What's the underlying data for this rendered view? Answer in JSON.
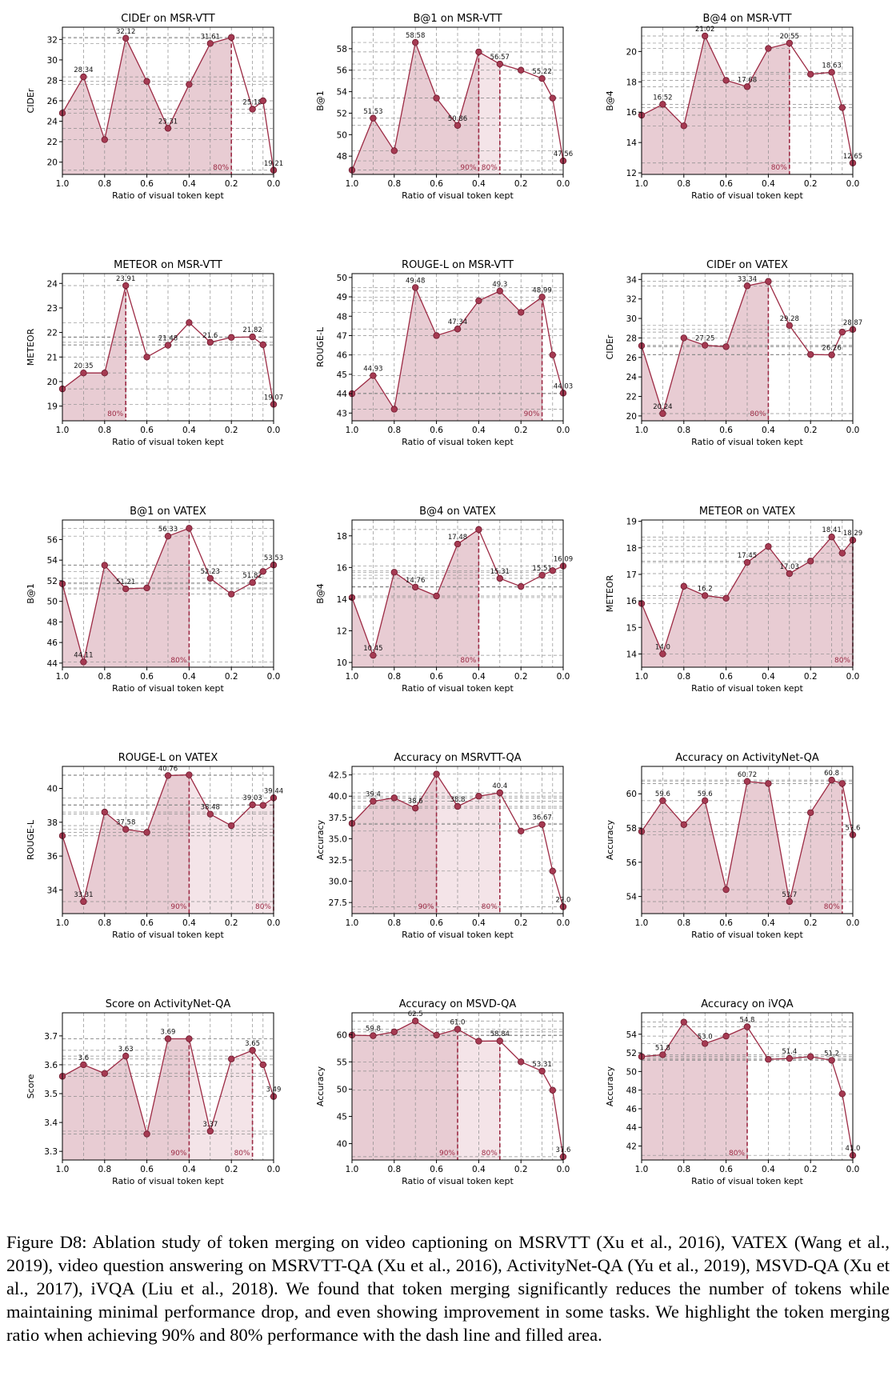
{
  "caption": {
    "label": "Figure D8:",
    "text": "Ablation study of token merging on video captioning on MSRVTT (Xu et al., 2016), VATEX (Wang et al., 2019), video question answering on MSRVTT-QA (Xu et al., 2016), ActivityNet-QA (Yu et al., 2019), MSVD-QA (Xu et al., 2017), iVQA (Liu et al., 2018). We found that token merging significantly reduces the number of tokens while maintaining minimal performance drop, and even showing improvement in some tasks. We highlight the token merging ratio when achieving 90% and 80% performance with the dash line and filled area."
  },
  "colors": {
    "line": "#9c2a44",
    "marker": "#a53a52",
    "fill_dark": "#e8ccd3",
    "fill_light": "#f4e4e8",
    "grid": "#8c8c8c"
  },
  "chart_data": [
    {
      "type": "line",
      "title": "CIDEr on MSR-VTT",
      "xlabel": "Ratio of visual token kept",
      "ylabel": "CIDEr",
      "x": [
        1.0,
        0.9,
        0.8,
        0.7,
        0.6,
        0.5,
        0.4,
        0.3,
        0.2,
        0.1,
        0.05,
        0.0
      ],
      "y": [
        24.8,
        28.34,
        22.2,
        32.12,
        27.9,
        23.31,
        27.6,
        31.61,
        32.2,
        25.18,
        26.0,
        19.21
      ],
      "labels": [
        null,
        "28.34",
        null,
        "32.12",
        null,
        "23.31",
        null,
        "31.61",
        null,
        "25.18",
        null,
        "19.21"
      ],
      "ylim": [
        18.8,
        33.2
      ],
      "yticks": [
        20,
        22,
        24,
        26,
        28,
        30,
        32
      ],
      "markers": [
        {
          "x": 0.2,
          "label": "80%"
        }
      ]
    },
    {
      "type": "line",
      "title": "B@1 on MSR-VTT",
      "xlabel": "Ratio of visual token kept",
      "ylabel": "B@1",
      "x": [
        1.0,
        0.9,
        0.8,
        0.7,
        0.6,
        0.5,
        0.4,
        0.3,
        0.2,
        0.1,
        0.05,
        0.0
      ],
      "y": [
        46.7,
        51.53,
        48.5,
        58.58,
        53.4,
        50.86,
        57.7,
        56.57,
        56.0,
        55.22,
        53.4,
        47.56
      ],
      "labels": [
        null,
        "51.53",
        null,
        "58.58",
        null,
        "50.86",
        null,
        "56.57",
        null,
        "55.22",
        null,
        "47.56"
      ],
      "ylim": [
        46.3,
        60.0
      ],
      "yticks": [
        48,
        50,
        52,
        54,
        56,
        58
      ],
      "markers": [
        {
          "x": 0.4,
          "label": "90%"
        },
        {
          "x": 0.3,
          "label": "80%"
        }
      ]
    },
    {
      "type": "line",
      "title": "B@4 on MSR-VTT",
      "xlabel": "Ratio of visual token kept",
      "ylabel": "B@4",
      "x": [
        1.0,
        0.9,
        0.8,
        0.7,
        0.6,
        0.5,
        0.4,
        0.3,
        0.2,
        0.1,
        0.05,
        0.0
      ],
      "y": [
        15.8,
        16.52,
        15.1,
        21.02,
        18.1,
        17.68,
        20.2,
        20.55,
        18.5,
        18.63,
        16.3,
        12.65
      ],
      "labels": [
        null,
        "16.52",
        null,
        "21.02",
        null,
        "17.68",
        null,
        "20.55",
        null,
        "18.63",
        null,
        "12.65"
      ],
      "ylim": [
        11.9,
        21.6
      ],
      "yticks": [
        12,
        14,
        16,
        18,
        20
      ],
      "markers": [
        {
          "x": 0.3,
          "label": "80%"
        }
      ]
    },
    {
      "type": "line",
      "title": "METEOR on MSR-VTT",
      "xlabel": "Ratio of visual token kept",
      "ylabel": "METEOR",
      "x": [
        1.0,
        0.9,
        0.8,
        0.7,
        0.6,
        0.5,
        0.4,
        0.3,
        0.2,
        0.1,
        0.05,
        0.0
      ],
      "y": [
        19.7,
        20.35,
        20.35,
        23.91,
        21.0,
        21.48,
        22.4,
        21.6,
        21.8,
        21.82,
        21.5,
        19.07
      ],
      "labels": [
        null,
        "20.35",
        null,
        "23.91",
        null,
        "21.48",
        null,
        "21.6",
        null,
        "21.82",
        null,
        "19.07"
      ],
      "ylim": [
        18.4,
        24.4
      ],
      "yticks": [
        19,
        20,
        21,
        22,
        23,
        24
      ],
      "markers": [
        {
          "x": 0.7,
          "label": "80%"
        }
      ]
    },
    {
      "type": "line",
      "title": "ROUGE-L on MSR-VTT",
      "xlabel": "Ratio of visual token kept",
      "ylabel": "ROUGE-L",
      "x": [
        1.0,
        0.9,
        0.8,
        0.7,
        0.6,
        0.5,
        0.4,
        0.3,
        0.2,
        0.1,
        0.05,
        0.0
      ],
      "y": [
        44.0,
        44.93,
        43.2,
        49.48,
        47.0,
        47.34,
        48.8,
        49.3,
        48.2,
        48.99,
        46.0,
        44.03
      ],
      "labels": [
        null,
        "44.93",
        null,
        "49.48",
        null,
        "47.34",
        null,
        "49.3",
        null,
        "48.99",
        null,
        "44.03"
      ],
      "ylim": [
        42.6,
        50.2
      ],
      "yticks": [
        43,
        44,
        45,
        46,
        47,
        48,
        49,
        50
      ],
      "markers": [
        {
          "x": 0.1,
          "label": "90%"
        }
      ]
    },
    {
      "type": "line",
      "title": "CIDEr on VATEX",
      "xlabel": "Ratio of visual token kept",
      "ylabel": "CIDEr",
      "x": [
        1.0,
        0.9,
        0.8,
        0.7,
        0.6,
        0.5,
        0.4,
        0.3,
        0.2,
        0.1,
        0.05,
        0.0
      ],
      "y": [
        27.2,
        20.24,
        28.0,
        27.25,
        27.1,
        33.34,
        33.8,
        29.28,
        26.3,
        26.26,
        28.6,
        28.87
      ],
      "labels": [
        null,
        "20.24",
        null,
        "27.25",
        null,
        "33.34",
        null,
        "29.28",
        null,
        "26.26",
        null,
        "28.87"
      ],
      "ylim": [
        19.5,
        34.6
      ],
      "yticks": [
        20,
        22,
        24,
        26,
        28,
        30,
        32,
        34
      ],
      "markers": [
        {
          "x": 0.4,
          "label": "80%"
        }
      ]
    },
    {
      "type": "line",
      "title": "B@1 on VATEX",
      "xlabel": "Ratio of visual token kept",
      "ylabel": "B@1",
      "x": [
        1.0,
        0.9,
        0.8,
        0.7,
        0.6,
        0.5,
        0.4,
        0.3,
        0.2,
        0.1,
        0.05,
        0.0
      ],
      "y": [
        51.7,
        44.11,
        53.5,
        51.21,
        51.3,
        56.33,
        57.1,
        52.23,
        50.7,
        51.82,
        52.9,
        53.53
      ],
      "labels": [
        null,
        "44.11",
        null,
        "51.21",
        null,
        "56.33",
        null,
        "52.23",
        null,
        "51.82",
        null,
        "53.53"
      ],
      "ylim": [
        43.6,
        57.9
      ],
      "yticks": [
        44,
        46,
        48,
        50,
        52,
        54,
        56
      ],
      "markers": [
        {
          "x": 0.4,
          "label": "80%"
        }
      ]
    },
    {
      "type": "line",
      "title": "B@4 on VATEX",
      "xlabel": "Ratio of visual token kept",
      "ylabel": "B@4",
      "x": [
        1.0,
        0.9,
        0.8,
        0.7,
        0.6,
        0.5,
        0.4,
        0.3,
        0.2,
        0.1,
        0.05,
        0.0
      ],
      "y": [
        14.1,
        10.45,
        15.7,
        14.76,
        14.2,
        17.48,
        18.4,
        15.31,
        14.8,
        15.51,
        15.8,
        16.09
      ],
      "labels": [
        null,
        "10.45",
        null,
        "14.76",
        null,
        "17.48",
        null,
        "15.31",
        null,
        "15.51",
        null,
        "16.09"
      ],
      "ylim": [
        9.7,
        19.0
      ],
      "yticks": [
        10,
        12,
        14,
        16,
        18
      ],
      "markers": [
        {
          "x": 0.4,
          "label": "80%"
        }
      ]
    },
    {
      "type": "line",
      "title": "METEOR on VATEX",
      "xlabel": "Ratio of visual token kept",
      "ylabel": "METEOR",
      "x": [
        1.0,
        0.9,
        0.8,
        0.7,
        0.6,
        0.5,
        0.4,
        0.3,
        0.2,
        0.1,
        0.05,
        0.0
      ],
      "y": [
        15.9,
        14.0,
        16.55,
        16.2,
        16.1,
        17.45,
        18.05,
        17.03,
        17.5,
        18.41,
        17.8,
        18.29
      ],
      "labels": [
        null,
        "14.0",
        null,
        "16.2",
        null,
        "17.45",
        null,
        "17.03",
        null,
        "18.41",
        null,
        "18.29"
      ],
      "ylim": [
        13.5,
        19.05
      ],
      "yticks": [
        14,
        15,
        16,
        17,
        18,
        19
      ],
      "markers": [
        {
          "x": 0.0,
          "label": "80%"
        }
      ]
    },
    {
      "type": "line",
      "title": "ROUGE-L on VATEX",
      "xlabel": "Ratio of visual token kept",
      "ylabel": "ROUGE-L",
      "x": [
        1.0,
        0.9,
        0.8,
        0.7,
        0.6,
        0.5,
        0.4,
        0.3,
        0.2,
        0.1,
        0.05,
        0.0
      ],
      "y": [
        37.2,
        33.31,
        38.6,
        37.58,
        37.4,
        40.76,
        40.8,
        38.48,
        37.8,
        39.03,
        39.0,
        39.44
      ],
      "labels": [
        null,
        "33.31",
        null,
        "37.58",
        null,
        "40.76",
        null,
        "38.48",
        null,
        "39.03",
        null,
        "39.44"
      ],
      "ylim": [
        32.6,
        41.3
      ],
      "yticks": [
        34,
        36,
        38,
        40
      ],
      "markers": [
        {
          "x": 0.4,
          "label": "90%"
        },
        {
          "x": 0.0,
          "label": "80%"
        }
      ]
    },
    {
      "type": "line",
      "title": "Accuracy on MSRVTT-QA",
      "xlabel": "Ratio of visual token kept",
      "ylabel": "Accuracy",
      "x": [
        1.0,
        0.9,
        0.8,
        0.7,
        0.6,
        0.5,
        0.4,
        0.3,
        0.2,
        0.1,
        0.05,
        0.0
      ],
      "y": [
        36.8,
        39.4,
        39.8,
        38.6,
        42.6,
        38.8,
        40.0,
        40.4,
        35.9,
        36.67,
        31.2,
        27.0
      ],
      "labels": [
        null,
        "39.4",
        null,
        "38.6",
        null,
        "38.8",
        null,
        "40.4",
        null,
        "36.67",
        null,
        "27.0"
      ],
      "ylim": [
        26.2,
        43.5
      ],
      "yticks": [
        27.5,
        30.0,
        32.5,
        35.0,
        37.5,
        40.0,
        42.5
      ],
      "markers": [
        {
          "x": 0.6,
          "label": "90%"
        },
        {
          "x": 0.3,
          "label": "80%"
        }
      ]
    },
    {
      "type": "line",
      "title": "Accuracy on ActivityNet-QA",
      "xlabel": "Ratio of visual token kept",
      "ylabel": "Accuracy",
      "x": [
        1.0,
        0.9,
        0.8,
        0.7,
        0.6,
        0.5,
        0.4,
        0.3,
        0.2,
        0.1,
        0.05,
        0.0
      ],
      "y": [
        57.8,
        59.6,
        58.2,
        59.6,
        54.4,
        60.72,
        60.6,
        53.7,
        58.9,
        60.8,
        60.6,
        57.6
      ],
      "labels": [
        null,
        "59.6",
        null,
        "59.6",
        null,
        "60.72",
        null,
        "53.7",
        null,
        "60.8",
        null,
        "57.6"
      ],
      "ylim": [
        53.0,
        61.6
      ],
      "yticks": [
        54,
        56,
        58,
        60
      ],
      "markers": [
        {
          "x": 0.05,
          "label": "80%"
        }
      ]
    },
    {
      "type": "line",
      "title": "Score on ActivityNet-QA",
      "xlabel": "Ratio of visual token kept",
      "ylabel": "Score",
      "x": [
        1.0,
        0.9,
        0.8,
        0.7,
        0.6,
        0.5,
        0.4,
        0.3,
        0.2,
        0.1,
        0.05,
        0.0
      ],
      "y": [
        3.56,
        3.6,
        3.57,
        3.63,
        3.36,
        3.69,
        3.69,
        3.37,
        3.62,
        3.65,
        3.6,
        3.49
      ],
      "labels": [
        null,
        "3.6",
        null,
        "3.63",
        null,
        "3.69",
        null,
        "3.37",
        null,
        "3.65",
        null,
        "3.49"
      ],
      "ylim": [
        3.27,
        3.78
      ],
      "yticks": [
        3.3,
        3.4,
        3.5,
        3.6,
        3.7
      ],
      "markers": [
        {
          "x": 0.4,
          "label": "90%"
        },
        {
          "x": 0.1,
          "label": "80%"
        }
      ]
    },
    {
      "type": "line",
      "title": "Accuracy on MSVD-QA",
      "xlabel": "Ratio of visual token kept",
      "ylabel": "Accuracy",
      "x": [
        1.0,
        0.9,
        0.8,
        0.7,
        0.6,
        0.5,
        0.4,
        0.3,
        0.2,
        0.1,
        0.05,
        0.0
      ],
      "y": [
        59.9,
        59.8,
        60.5,
        62.5,
        59.9,
        61.0,
        58.8,
        58.84,
        55.0,
        53.31,
        49.8,
        37.6
      ],
      "labels": [
        null,
        "59.8",
        null,
        "62.5",
        null,
        "61.0",
        null,
        "58.84",
        null,
        "53.31",
        null,
        "37.6"
      ],
      "ylim": [
        37.0,
        64.0
      ],
      "yticks": [
        40,
        45,
        50,
        55,
        60
      ],
      "markers": [
        {
          "x": 0.5,
          "label": "90%"
        },
        {
          "x": 0.3,
          "label": "80%"
        }
      ]
    },
    {
      "type": "line",
      "title": "Accuracy on iVQA",
      "xlabel": "Ratio of visual token kept",
      "ylabel": "Accuracy",
      "x": [
        1.0,
        0.9,
        0.8,
        0.7,
        0.6,
        0.5,
        0.4,
        0.3,
        0.2,
        0.1,
        0.05,
        0.0
      ],
      "y": [
        51.6,
        51.8,
        55.3,
        53.0,
        53.8,
        54.8,
        51.3,
        51.4,
        51.6,
        51.2,
        47.6,
        41.0
      ],
      "labels": [
        null,
        "51.8",
        null,
        "53.0",
        null,
        "54.8",
        null,
        "51.4",
        null,
        "51.2",
        null,
        "41.0"
      ],
      "ylim": [
        40.5,
        56.3
      ],
      "yticks": [
        42,
        44,
        46,
        48,
        50,
        52,
        54
      ],
      "markers": [
        {
          "x": 0.5,
          "label": "80%"
        }
      ]
    }
  ]
}
